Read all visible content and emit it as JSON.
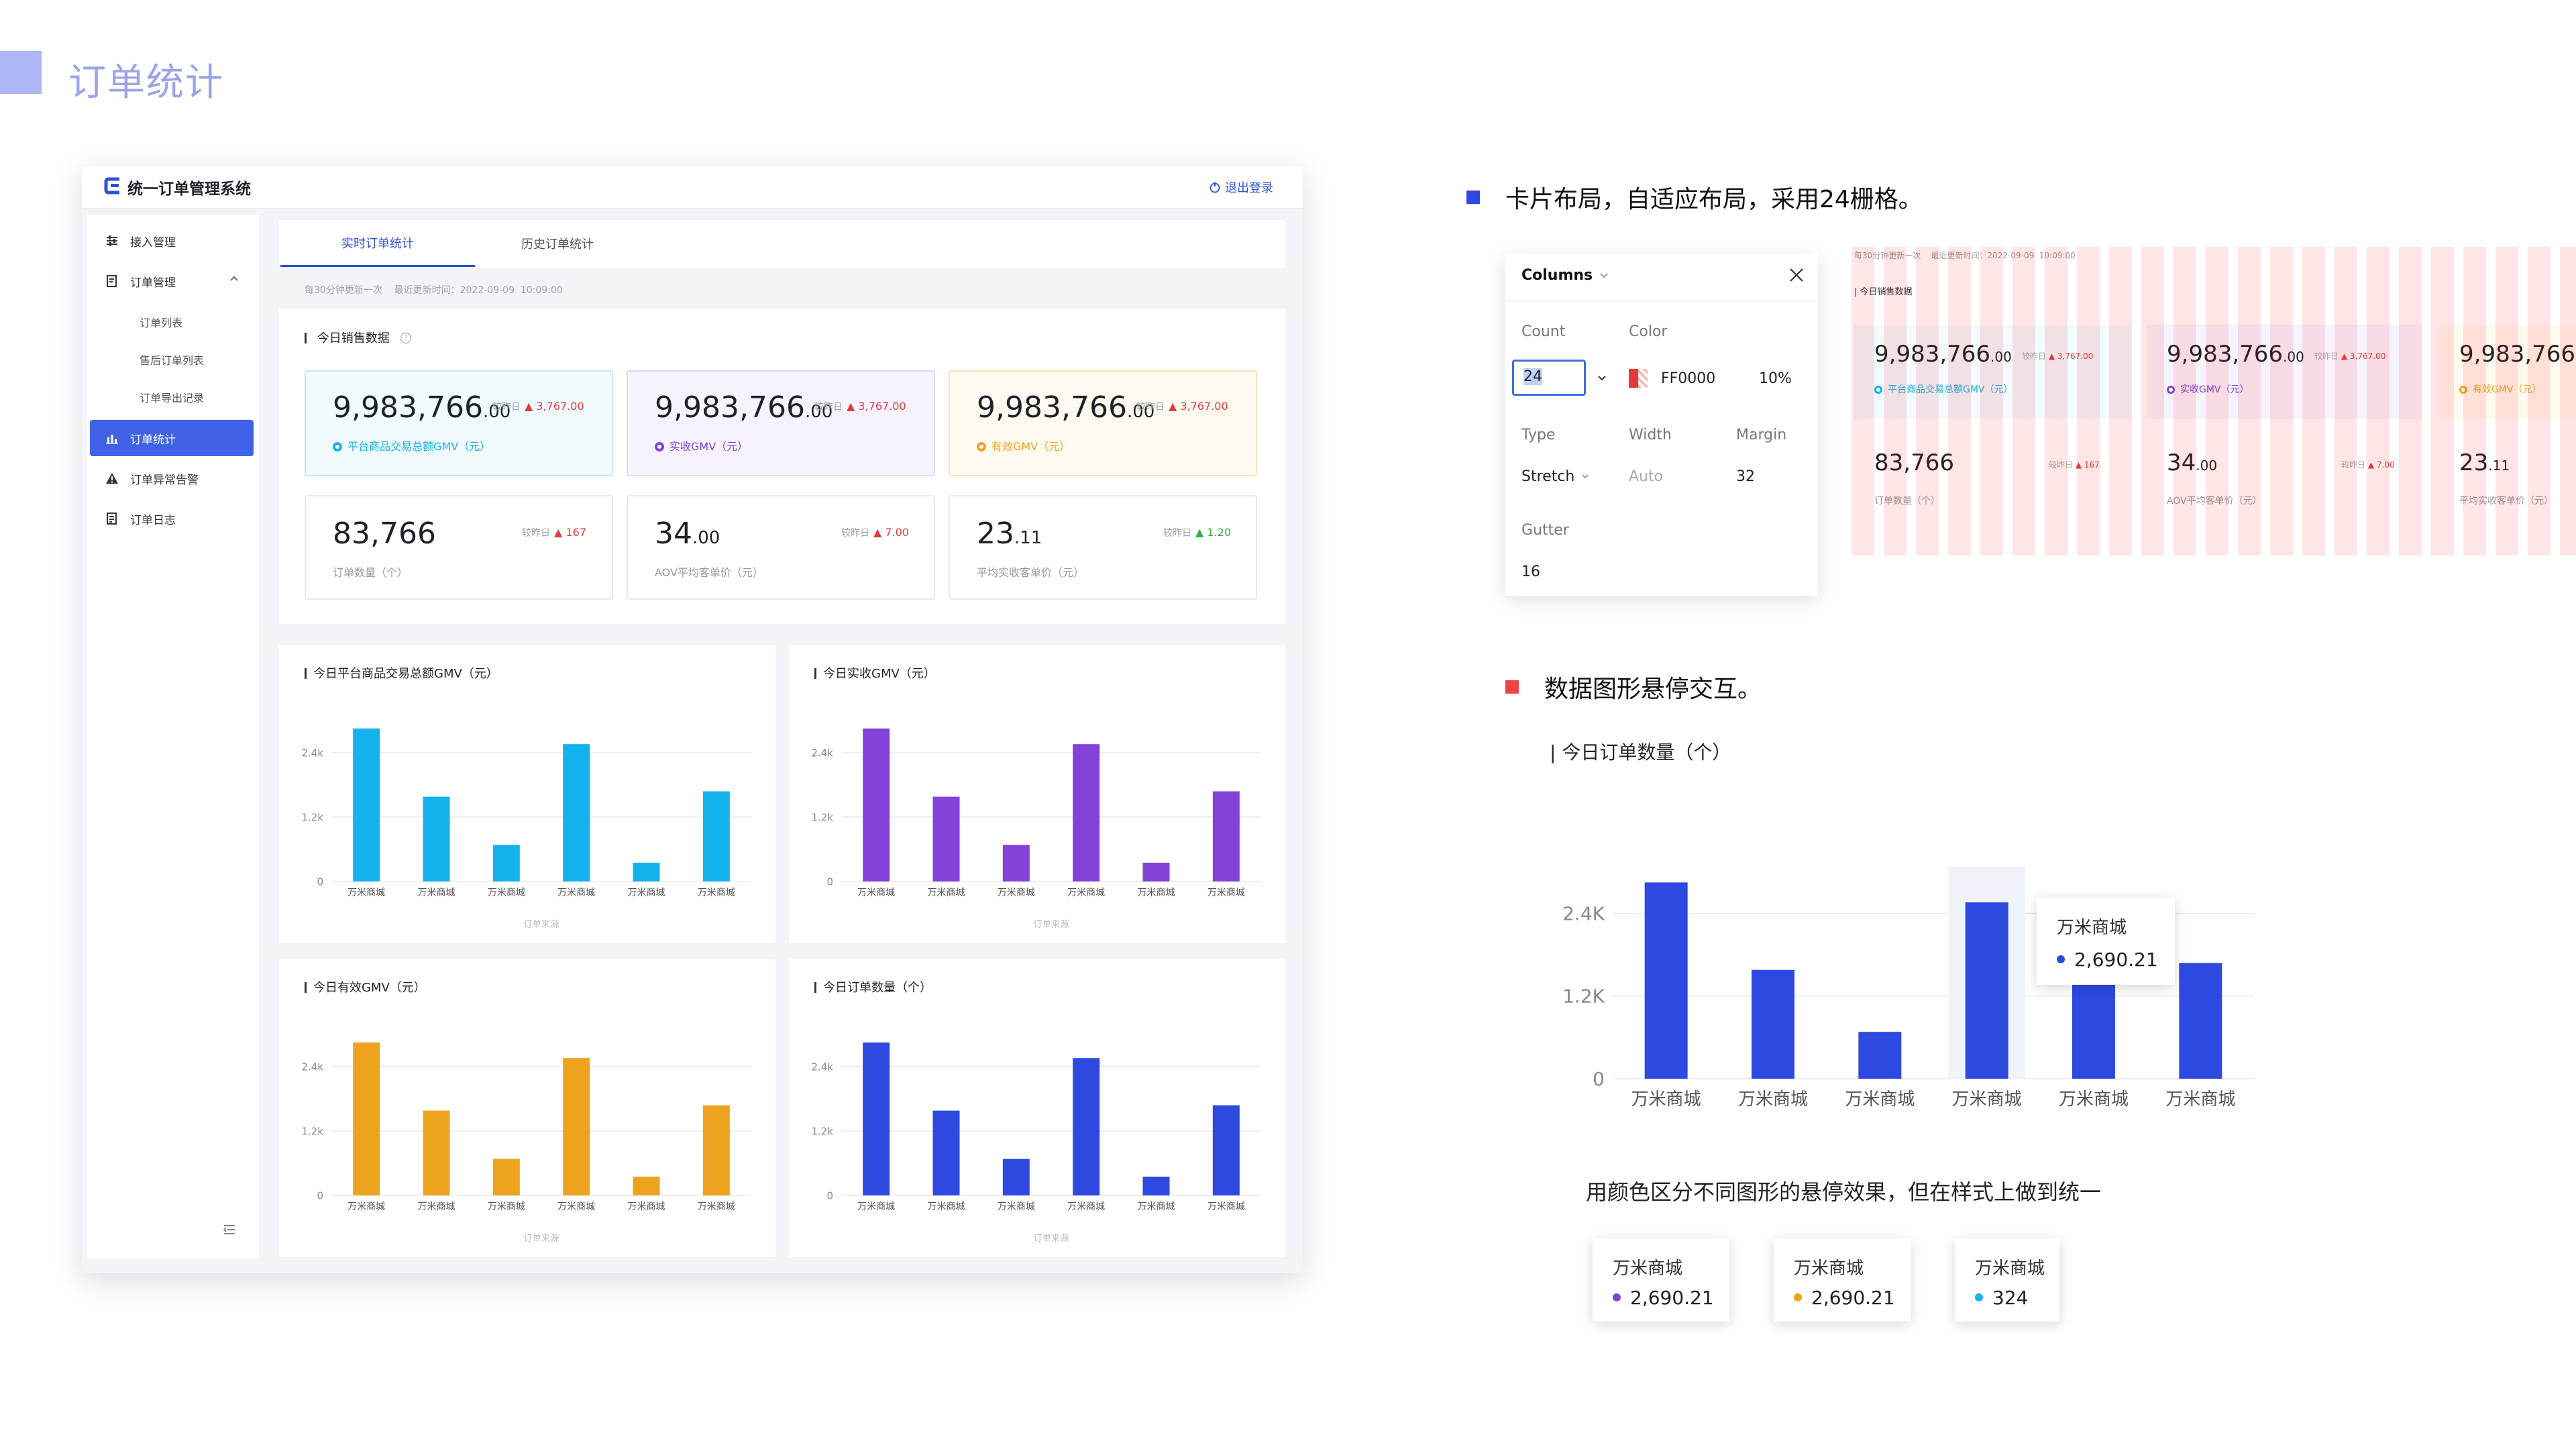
{
  "page_title": "订单统计",
  "colors": {
    "accent": "#4062e6",
    "blue": "#2e49e0",
    "cyan": "#13b2ec",
    "purple": "#8442d6",
    "orange": "#eea31f",
    "red_up": "#e23a3a",
    "green_up": "#2fb03f"
  },
  "app": {
    "system_title": "统一订单管理系统",
    "logout": "退出登录",
    "sidebar": {
      "items": [
        {
          "label": "接入管理",
          "icon": "sliders-icon"
        },
        {
          "label": "订单管理",
          "icon": "order-icon"
        },
        {
          "label": "订单统计",
          "icon": "bar-chart-icon"
        },
        {
          "label": "订单异常告警",
          "icon": "warning-icon"
        },
        {
          "label": "订单日志",
          "icon": "log-icon"
        }
      ],
      "sub_items": [
        "订单列表",
        "售后订单列表",
        "订单导出记录"
      ]
    },
    "tabs": [
      "实时订单统计",
      "历史订单统计"
    ],
    "update_info": "每30分钟更新一次    最近更新时间：2022-09-09  10:09:00",
    "sales_section_title": "今日销售数据",
    "metrics": [
      {
        "int": "9,983,766",
        "dec": ".00",
        "vs": "较昨日",
        "delta": "▲ 3,767.00",
        "label": "平台商品交易总额GMV（元）"
      },
      {
        "int": "9,983,766",
        "dec": ".00",
        "vs": "较昨日",
        "delta": "▲ 3,767.00",
        "label": "实收GMV（元）"
      },
      {
        "int": "9,983,766",
        "dec": ".00",
        "vs": "较昨日",
        "delta": "▲ 3,767.00",
        "label": "有效GMV（元）"
      },
      {
        "int": "83,766",
        "dec": "",
        "vs": "较昨日",
        "delta": "▲ 167",
        "label": "订单数量（个）"
      },
      {
        "int": "34",
        "dec": ".00",
        "vs": "较昨日",
        "delta": "▲ 7.00",
        "label": "AOV平均客单价（元）"
      },
      {
        "int": "23",
        "dec": ".11",
        "vs": "较昨日",
        "delta": "▲ 1.20",
        "label": "平均实收客单价（元）"
      }
    ],
    "chart_footer": "订单来源"
  },
  "chart_data": [
    {
      "type": "bar",
      "title": "今日平台商品交易总额GMV（元）",
      "color": "#13b2ec",
      "categories": [
        "万米商城",
        "万米商城",
        "万米商城",
        "万米商城",
        "万米商城",
        "万米商城"
      ],
      "values": [
        2850,
        1580,
        680,
        2560,
        350,
        1680
      ],
      "yticks": [
        "0",
        "1.2k",
        "2.4k"
      ],
      "ylim": [
        0,
        3000
      ],
      "xlabel": "订单来源"
    },
    {
      "type": "bar",
      "title": "今日实收GMV（元）",
      "color": "#8442d6",
      "categories": [
        "万米商城",
        "万米商城",
        "万米商城",
        "万米商城",
        "万米商城",
        "万米商城"
      ],
      "values": [
        2850,
        1580,
        680,
        2560,
        350,
        1680
      ],
      "yticks": [
        "0",
        "1.2k",
        "2.4k"
      ],
      "ylim": [
        0,
        3000
      ],
      "xlabel": "订单来源"
    },
    {
      "type": "bar",
      "title": "今日有效GMV（元）",
      "color": "#eea31f",
      "categories": [
        "万米商城",
        "万米商城",
        "万米商城",
        "万米商城",
        "万米商城",
        "万米商城"
      ],
      "values": [
        2850,
        1580,
        680,
        2560,
        350,
        1680
      ],
      "yticks": [
        "0",
        "1.2k",
        "2.4k"
      ],
      "ylim": [
        0,
        3000
      ],
      "xlabel": "订单来源"
    },
    {
      "type": "bar",
      "title": "今日订单数量（个）",
      "color": "#2e49e0",
      "categories": [
        "万米商城",
        "万米商城",
        "万米商城",
        "万米商城",
        "万米商城",
        "万米商城"
      ],
      "values": [
        2850,
        1580,
        680,
        2560,
        350,
        1680
      ],
      "yticks": [
        "0",
        "1.2k",
        "2.4k"
      ],
      "ylim": [
        0,
        3000
      ],
      "xlabel": "订单来源"
    },
    {
      "type": "bar",
      "title": "今日订单数量（个）",
      "color": "#2e49e0",
      "categories": [
        "万米商城",
        "万米商城",
        "万米商城",
        "万米商城",
        "万米商城",
        "万米商城"
      ],
      "values": [
        2850,
        1580,
        680,
        2560,
        1580,
        1680
      ],
      "yticks": [
        "0",
        "1.2K",
        "2.4K"
      ],
      "ylim": [
        0,
        3000
      ],
      "highlight_index": 3
    }
  ],
  "annotations": {
    "grid_note": "卡片布局，自适应布局，采用24栅格。",
    "hover_note": "数据图形悬停交互。",
    "hover_desc": "用颜色区分不同图形的悬停效果，但在样式上做到统一"
  },
  "columns_panel": {
    "title": "Columns",
    "count_label": "Count",
    "count_value": "24",
    "color_label": "Color",
    "color_value": "FF0000",
    "opacity": "10%",
    "type_label": "Type",
    "type_value": "Stretch",
    "width_label": "Width",
    "width_value": "Auto",
    "margin_label": "Margin",
    "margin_value": "32",
    "gutter_label": "Gutter",
    "gutter_value": "16"
  },
  "tooltips": [
    {
      "title": "万米商城",
      "value": "2,690.21",
      "color": "#2e49e0"
    },
    {
      "title": "万米商城",
      "value": "2,690.21",
      "color": "#8442d6"
    },
    {
      "title": "万米商城",
      "value": "2,690.21",
      "color": "#eea31f"
    },
    {
      "title": "万米商城",
      "value": "324",
      "color": "#13b2ec"
    }
  ]
}
